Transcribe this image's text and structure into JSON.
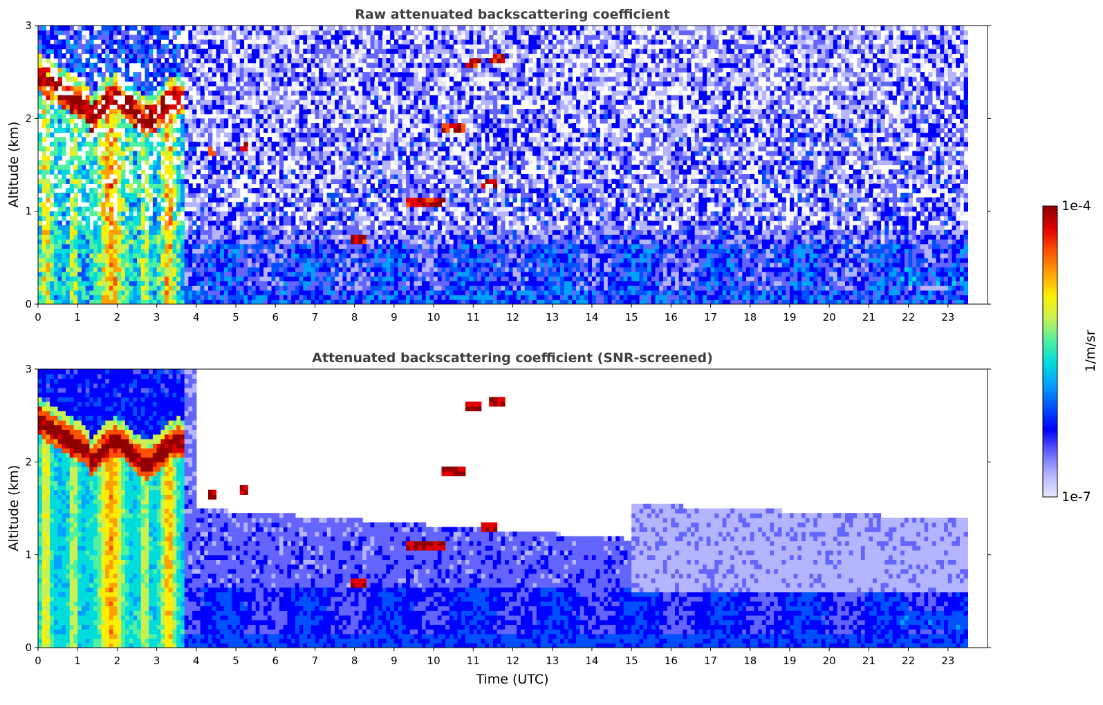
{
  "chart_data": [
    {
      "type": "heatmap",
      "title": "Raw attenuated backscattering coefficient",
      "xlabel": "",
      "ylabel": "Altitude (km)",
      "xlim": [
        0,
        24
      ],
      "ylim": [
        0,
        3
      ],
      "x_ticks": [
        "0",
        "1",
        "2",
        "3",
        "4",
        "5",
        "6",
        "7",
        "8",
        "9",
        "10",
        "11",
        "12",
        "13",
        "14",
        "15",
        "16",
        "17",
        "18",
        "19",
        "20",
        "21",
        "22",
        "23"
      ],
      "y_ticks": [
        "0",
        "1",
        "2",
        "3"
      ],
      "data_extent_x": [
        0,
        23.5
      ],
      "screened": false,
      "features": [
        {
          "name": "cloud layer",
          "x_range": [
            0,
            3.7
          ],
          "altitude_km": [
            1.8,
            2.6
          ]
        },
        {
          "name": "aerosol plumes",
          "x_range": [
            0.1,
            3.7
          ],
          "altitude_km": [
            0,
            2.2
          ]
        },
        {
          "name": "boundary layer",
          "x_range": [
            3.7,
            23.5
          ],
          "altitude_km": [
            0,
            0.7
          ]
        },
        {
          "name": "cloud patches",
          "x_range": [
            9.5,
            12
          ],
          "altitude_km": [
            0.9,
            2.8
          ]
        },
        {
          "name": "low layer",
          "x_range": [
            21.8,
            23.5
          ],
          "altitude_km": [
            0.2,
            0.4
          ]
        }
      ]
    },
    {
      "type": "heatmap",
      "title": "Attenuated backscattering coefficient (SNR-screened)",
      "xlabel": "Time (UTC)",
      "ylabel": "Altitude (km)",
      "xlim": [
        0,
        24
      ],
      "ylim": [
        0,
        3
      ],
      "x_ticks": [
        "0",
        "1",
        "2",
        "3",
        "4",
        "5",
        "6",
        "7",
        "8",
        "9",
        "10",
        "11",
        "12",
        "13",
        "14",
        "15",
        "16",
        "17",
        "18",
        "19",
        "20",
        "21",
        "22",
        "23"
      ],
      "y_ticks": [
        "0",
        "1",
        "2",
        "3"
      ],
      "data_extent_x": [
        0,
        23.5
      ],
      "screened": true
    }
  ],
  "colorbar": {
    "label": "1/m/sr",
    "min_label": "1e-7",
    "max_label": "1e-4",
    "scale": "log",
    "colors": [
      "#e8e8ff",
      "#b4b4ff",
      "#6464ff",
      "#0000ff",
      "#0050ff",
      "#00a0ff",
      "#00dcdc",
      "#50f0a0",
      "#c8f050",
      "#ffee00",
      "#ffa000",
      "#ff5000",
      "#e00000",
      "#900000"
    ]
  }
}
